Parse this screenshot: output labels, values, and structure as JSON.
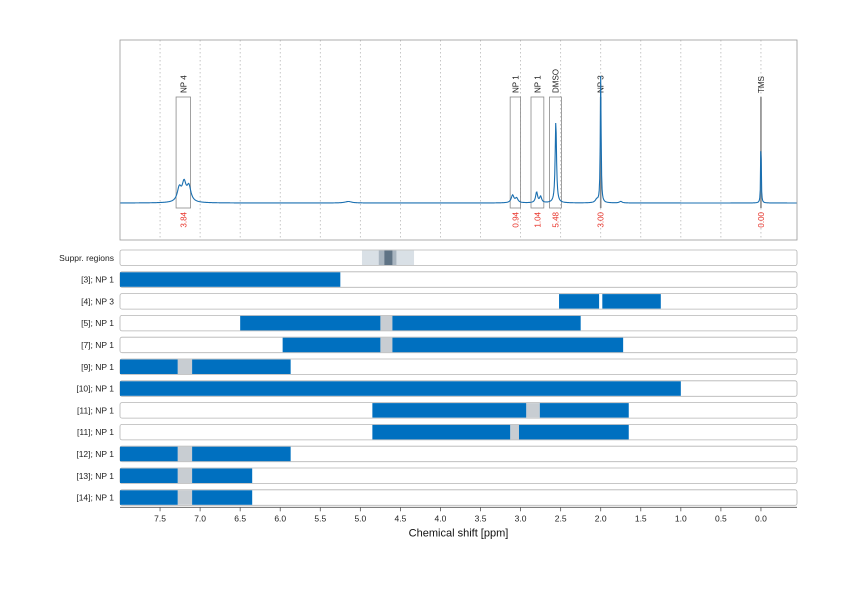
{
  "chart_data": {
    "type": "line",
    "xlabel": "Chemical shift [ppm]",
    "x_reversed": true,
    "xlim": [
      8.0,
      -0.45
    ],
    "x_ticks": [
      7.5,
      7.0,
      6.5,
      6.0,
      5.5,
      5.0,
      4.5,
      4.0,
      3.5,
      3.0,
      2.5,
      2.0,
      1.5,
      1.0,
      0.5,
      0.0
    ],
    "x_tick_labels": [
      "7.5",
      "7.0",
      "6.5",
      "6.0",
      "5.5",
      "5.0",
      "4.5",
      "4.0",
      "3.5",
      "3.0",
      "2.5",
      "2.0",
      "1.5",
      "1.0",
      "0.5",
      "0.0"
    ],
    "grid": "vertical dotted",
    "colors": {
      "spectrum": "#1a6fb0",
      "bar": "#0070c0",
      "gap": "#c8cdd2",
      "integral_label": "#e8332a",
      "frame": "#9a9a9a"
    },
    "spectrum_peaks": [
      {
        "ppm": 7.26,
        "height": 0.09,
        "width": 0.03
      },
      {
        "ppm": 7.2,
        "height": 0.12,
        "width": 0.03
      },
      {
        "ppm": 7.14,
        "height": 0.1,
        "width": 0.03
      },
      {
        "ppm": 5.15,
        "height": 0.01,
        "width": 0.05
      },
      {
        "ppm": 3.1,
        "height": 0.05,
        "width": 0.02
      },
      {
        "ppm": 3.05,
        "height": 0.03,
        "width": 0.02
      },
      {
        "ppm": 2.8,
        "height": 0.07,
        "width": 0.015
      },
      {
        "ppm": 2.75,
        "height": 0.04,
        "width": 0.015
      },
      {
        "ppm": 2.56,
        "height": 0.55,
        "width": 0.01
      },
      {
        "ppm": 2.05,
        "height": 0.02,
        "width": 0.02
      },
      {
        "ppm": 2.0,
        "height": 0.85,
        "width": 0.006
      },
      {
        "ppm": 1.75,
        "height": 0.01,
        "width": 0.02
      },
      {
        "ppm": 0.0,
        "height": 0.5,
        "width": 0.004
      }
    ],
    "annotations": [
      {
        "label": "NP 4",
        "from": 7.3,
        "to": 7.12,
        "integral": "3.84",
        "marker": false
      },
      {
        "label": "NP 1",
        "from": 3.13,
        "to": 3.0,
        "integral": "0.94",
        "marker": false
      },
      {
        "label": "NP 1",
        "from": 2.87,
        "to": 2.71,
        "integral": "1.04",
        "marker": false
      },
      {
        "label": "DMSO",
        "from": 2.64,
        "to": 2.49,
        "integral": "5.48",
        "marker": false
      },
      {
        "label": "NP 3",
        "from": 2.0,
        "to": 2.0,
        "integral": "3.00",
        "marker": true
      },
      {
        "label": "TMS",
        "from": 0.0,
        "to": 0.0,
        "integral": "0.00",
        "marker": true
      }
    ],
    "rows": [
      {
        "label": "Suppr. regions",
        "type": "suppression",
        "outer": [
          4.98,
          4.33
        ],
        "inner": [
          4.77,
          4.55
        ],
        "core": [
          4.7,
          4.6
        ]
      },
      {
        "label": "[3]; NP 1",
        "bars": [
          [
            8.0,
            5.25
          ]
        ],
        "gaps": []
      },
      {
        "label": "[4]; NP 3",
        "bars": [
          [
            2.52,
            2.02
          ],
          [
            1.98,
            1.25
          ]
        ],
        "gaps": []
      },
      {
        "label": "[5]; NP 1",
        "bars": [
          [
            6.5,
            4.75
          ],
          [
            4.6,
            2.25
          ]
        ],
        "gaps": [
          [
            4.75,
            4.6
          ]
        ]
      },
      {
        "label": "[7]; NP 1",
        "bars": [
          [
            5.97,
            4.75
          ],
          [
            4.6,
            1.72
          ]
        ],
        "gaps": [
          [
            4.75,
            4.6
          ]
        ]
      },
      {
        "label": "[9]; NP 1",
        "bars": [
          [
            8.0,
            7.28
          ],
          [
            7.1,
            5.87
          ]
        ],
        "gaps": [
          [
            7.28,
            7.1
          ]
        ]
      },
      {
        "label": "[10]; NP 1",
        "bars": [
          [
            8.0,
            1.0
          ]
        ],
        "gaps": []
      },
      {
        "label": "[11]; NP 1",
        "bars": [
          [
            4.85,
            2.93
          ],
          [
            2.76,
            1.65
          ]
        ],
        "gaps": [
          [
            2.93,
            2.76
          ]
        ]
      },
      {
        "label": "[11]; NP 1",
        "bars": [
          [
            4.85,
            3.13
          ],
          [
            3.02,
            1.65
          ]
        ],
        "gaps": [
          [
            3.13,
            3.02
          ]
        ]
      },
      {
        "label": "[12]; NP 1",
        "bars": [
          [
            8.0,
            7.28
          ],
          [
            7.1,
            5.87
          ]
        ],
        "gaps": [
          [
            7.28,
            7.1
          ]
        ]
      },
      {
        "label": "[13]; NP 1",
        "bars": [
          [
            8.0,
            7.28
          ],
          [
            7.1,
            6.35
          ]
        ],
        "gaps": [
          [
            7.28,
            7.1
          ]
        ]
      },
      {
        "label": "[14]; NP 1",
        "bars": [
          [
            8.0,
            7.28
          ],
          [
            7.1,
            6.35
          ]
        ],
        "gaps": [
          [
            7.28,
            7.1
          ]
        ]
      }
    ]
  }
}
